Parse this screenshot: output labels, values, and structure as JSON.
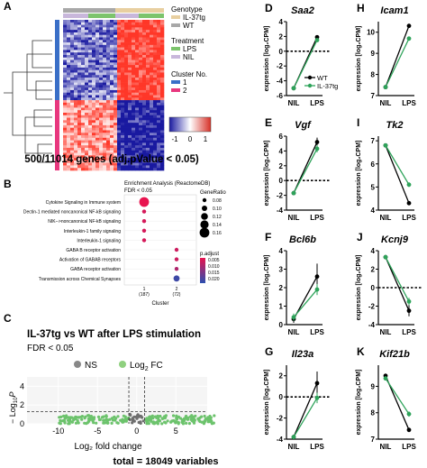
{
  "panels": {
    "A": {
      "letter": "A",
      "legend": {
        "genotype_title": "Genotype",
        "genotype": [
          {
            "label": "IL-37tg",
            "color": "#e8cfa0"
          },
          {
            "label": "WT",
            "color": "#a8a8a8"
          }
        ],
        "treatment_title": "Treatment",
        "treatment": [
          {
            "label": "LPS",
            "color": "#7cc46c"
          },
          {
            "label": "NIL",
            "color": "#c8b7db"
          }
        ],
        "cluster_title": "Cluster No.",
        "cluster": [
          {
            "label": "1",
            "color": "#3a6fc7"
          },
          {
            "label": "2",
            "color": "#e8377e"
          }
        ]
      },
      "colorbar_ticks": [
        "-1",
        "0",
        "1"
      ],
      "caption": "500/11014 genes (adj.pValue < 0.05)"
    },
    "B": {
      "letter": "B",
      "title": "Enrichment Analysis (ReactomeDB)",
      "subtitle": "FDR < 0.05",
      "terms": [
        "Cytokine Signaling in Immune system",
        "Dectin-1 mediated noncanonical NF-kB signaling",
        "NIK-->noncanonical NF-kB signaling",
        "Interleukin-1 family signaling",
        "Interleukin-1 signaling",
        "GABA B receptor activation",
        "Activation of GABAB receptors",
        "GABA receptor activation",
        "Transmission across Chemical Synapses"
      ],
      "x_categories": [
        "1\n(187)",
        "2\n(72)"
      ],
      "x_label_1": "1",
      "x_count_1": "(187)",
      "x_label_2": "2",
      "x_count_2": "(72)",
      "xlabel": "Cluster",
      "size_title": "GeneRatio",
      "size_ticks": [
        "0.08",
        "0.10",
        "0.12",
        "0.14",
        "0.16"
      ],
      "color_title": "p.adjust",
      "color_ticks": [
        "0.005",
        "0.010",
        "0.015",
        "0.020"
      ],
      "dots": [
        {
          "term": 0,
          "cluster": 1,
          "ratio": 0.16,
          "padj": 0.002
        },
        {
          "term": 1,
          "cluster": 1,
          "ratio": 0.08,
          "padj": 0.004
        },
        {
          "term": 2,
          "cluster": 1,
          "ratio": 0.08,
          "padj": 0.004
        },
        {
          "term": 3,
          "cluster": 1,
          "ratio": 0.08,
          "padj": 0.004
        },
        {
          "term": 4,
          "cluster": 1,
          "ratio": 0.08,
          "padj": 0.004
        },
        {
          "term": 5,
          "cluster": 2,
          "ratio": 0.08,
          "padj": 0.005
        },
        {
          "term": 6,
          "cluster": 2,
          "ratio": 0.08,
          "padj": 0.005
        },
        {
          "term": 7,
          "cluster": 2,
          "ratio": 0.08,
          "padj": 0.008
        },
        {
          "term": 8,
          "cluster": 2,
          "ratio": 0.11,
          "padj": 0.02
        }
      ]
    },
    "C": {
      "letter": "C",
      "title": "IL-37tg vs WT after LPS stimulation",
      "subtitle": "FDR < 0.05",
      "legend_ns": "NS",
      "legend_fc": "Log",
      "legend_fc_sub": "2",
      "legend_fc_tail": " FC",
      "ylabel_prefix": "− Log",
      "ylabel_sub": "10",
      "ylabel_p": "P",
      "xlabel": "Log₂ fold change",
      "x_ticks": [
        "-10",
        "-5",
        "0",
        "5"
      ],
      "y_ticks": [
        "0",
        "2",
        "4"
      ],
      "total": "total = 18049 variables"
    }
  },
  "line_panels": [
    {
      "letter": "D",
      "gene": "Saa2",
      "ylim": [
        -6,
        4
      ],
      "ticks": [
        "-6",
        "-4",
        "-2",
        "0",
        "2",
        "4"
      ],
      "tick_vals": [
        -6,
        -4,
        -2,
        0,
        2,
        4
      ],
      "wt": [
        -5.0,
        1.9
      ],
      "il37": [
        -5.0,
        1.5
      ],
      "err_wt": [
        0.2,
        0.2
      ],
      "err_il": [
        0.2,
        0.2
      ],
      "legend": true
    },
    {
      "letter": "H",
      "gene": "Icam1",
      "ylim": [
        7,
        10.5
      ],
      "ticks": [
        "7",
        "8",
        "9",
        "10"
      ],
      "tick_vals": [
        7,
        8,
        9,
        10
      ],
      "wt": [
        7.4,
        10.3
      ],
      "il37": [
        7.4,
        9.7
      ],
      "err_wt": [
        0.08,
        0.08
      ],
      "err_il": [
        0.08,
        0.1
      ],
      "legend": false
    },
    {
      "letter": "E",
      "gene": "Vgf",
      "ylim": [
        -4,
        6
      ],
      "ticks": [
        "-4",
        "-2",
        "0",
        "2",
        "4",
        "6"
      ],
      "tick_vals": [
        -4,
        -2,
        0,
        2,
        4,
        6
      ],
      "wt": [
        -1.7,
        5.2
      ],
      "il37": [
        -1.7,
        4.3
      ],
      "err_wt": [
        0.2,
        0.6
      ],
      "err_il": [
        0.2,
        0.5
      ],
      "legend": false
    },
    {
      "letter": "I",
      "gene": "Tk2",
      "ylim": [
        4,
        7.2
      ],
      "ticks": [
        "4",
        "5",
        "6",
        "7"
      ],
      "tick_vals": [
        4,
        5,
        6,
        7
      ],
      "wt": [
        6.8,
        4.3
      ],
      "il37": [
        6.8,
        5.1
      ],
      "err_wt": [
        0.08,
        0.08
      ],
      "err_il": [
        0.08,
        0.1
      ],
      "legend": false
    },
    {
      "letter": "F",
      "gene": "Bcl6b",
      "ylim": [
        0,
        4
      ],
      "ticks": [
        "0",
        "1",
        "2",
        "3",
        "4"
      ],
      "tick_vals": [
        0,
        1,
        2,
        3,
        4
      ],
      "wt": [
        0.3,
        2.6
      ],
      "il37": [
        0.4,
        1.9
      ],
      "err_wt": [
        0.2,
        0.7
      ],
      "err_il": [
        0.2,
        0.3
      ],
      "legend": false
    },
    {
      "letter": "J",
      "gene": "Kcnj9",
      "ylim": [
        -4,
        4
      ],
      "ticks": [
        "-4",
        "-2",
        "0",
        "2",
        "4"
      ],
      "tick_vals": [
        -4,
        -2,
        0,
        2,
        4
      ],
      "wt": [
        3.3,
        -2.5
      ],
      "il37": [
        3.3,
        -1.5
      ],
      "err_wt": [
        0.2,
        0.6
      ],
      "err_il": [
        0.2,
        0.4
      ],
      "legend": false
    },
    {
      "letter": "G",
      "gene": "Il23a",
      "ylim": [
        -4,
        3
      ],
      "ticks": [
        "-4",
        "-2",
        "0",
        "2"
      ],
      "tick_vals": [
        -4,
        -2,
        0,
        2
      ],
      "wt": [
        -3.8,
        1.3
      ],
      "il37": [
        -3.8,
        -0.1
      ],
      "err_wt": [
        0.2,
        1.1
      ],
      "err_il": [
        0.2,
        0.5
      ],
      "legend": false
    },
    {
      "letter": "K",
      "gene": "Kif21b",
      "ylim": [
        7,
        9.8
      ],
      "ticks": [
        "7",
        "8",
        "9"
      ],
      "tick_vals": [
        7,
        8,
        9
      ],
      "wt": [
        9.4,
        7.35
      ],
      "il37": [
        9.3,
        7.95
      ],
      "err_wt": [
        0.08,
        0.08
      ],
      "err_il": [
        0.08,
        0.1
      ],
      "legend": false
    }
  ],
  "line_common": {
    "ylabel": "expression [log₂CPM]",
    "x_categories": [
      "NIL",
      "LPS"
    ],
    "legend_wt": "WT",
    "legend_il": "IL-37tg"
  },
  "colors": {
    "wt": "#000000",
    "il37": "#2ea35a",
    "heat_red": "#d73027",
    "heat_blue": "#1a1aa0"
  }
}
